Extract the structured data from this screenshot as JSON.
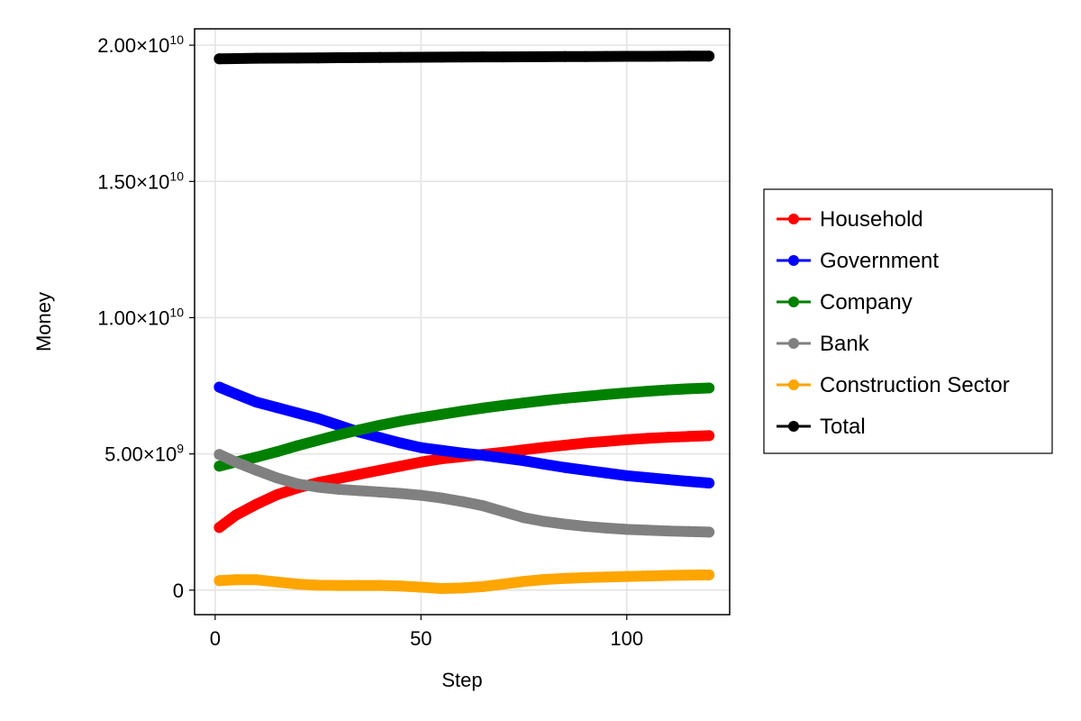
{
  "chart_data": {
    "type": "scatter",
    "xlabel": "Step",
    "ylabel": "Money",
    "xlim": [
      -5,
      125
    ],
    "ylim": [
      -900000000,
      20600000000
    ],
    "grid": true,
    "legend_position": "right",
    "x_ticks": [
      {
        "value": 0,
        "label": "0"
      },
      {
        "value": 50,
        "label": "50"
      },
      {
        "value": 100,
        "label": "100"
      }
    ],
    "y_ticks": [
      {
        "value": 0,
        "label": "0",
        "mantissa": "0",
        "exponent": ""
      },
      {
        "value": 5000000000,
        "label": "5.00×10^9",
        "mantissa": "5.00×10",
        "exponent": "9"
      },
      {
        "value": 10000000000,
        "label": "1.00×10^10",
        "mantissa": "1.00×10",
        "exponent": "10"
      },
      {
        "value": 15000000000,
        "label": "1.50×10^10",
        "mantissa": "1.50×10",
        "exponent": "10"
      },
      {
        "value": 20000000000,
        "label": "2.00×10^10",
        "mantissa": "2.00×10",
        "exponent": "10"
      }
    ],
    "series": [
      {
        "name": "Household",
        "color": "#ff0000",
        "x": [
          1,
          5,
          10,
          15,
          20,
          25,
          30,
          35,
          40,
          45,
          50,
          55,
          60,
          65,
          70,
          75,
          80,
          85,
          90,
          95,
          100,
          105,
          110,
          115,
          120
        ],
        "y": [
          2300000000,
          2750000000,
          3150000000,
          3500000000,
          3750000000,
          3950000000,
          4100000000,
          4250000000,
          4400000000,
          4550000000,
          4700000000,
          4820000000,
          4900000000,
          4980000000,
          5060000000,
          5150000000,
          5240000000,
          5320000000,
          5400000000,
          5460000000,
          5520000000,
          5570000000,
          5610000000,
          5640000000,
          5670000000
        ]
      },
      {
        "name": "Government",
        "color": "#0000ff",
        "x": [
          1,
          5,
          10,
          15,
          20,
          25,
          30,
          35,
          40,
          45,
          50,
          55,
          60,
          65,
          70,
          75,
          80,
          85,
          90,
          95,
          100,
          105,
          110,
          115,
          120
        ],
        "y": [
          7450000000,
          7200000000,
          6900000000,
          6700000000,
          6500000000,
          6300000000,
          6050000000,
          5800000000,
          5600000000,
          5400000000,
          5230000000,
          5130000000,
          5030000000,
          4950000000,
          4850000000,
          4750000000,
          4620000000,
          4500000000,
          4400000000,
          4300000000,
          4200000000,
          4130000000,
          4060000000,
          3990000000,
          3930000000
        ]
      },
      {
        "name": "Company",
        "color": "#008000",
        "x": [
          1,
          5,
          10,
          15,
          20,
          25,
          30,
          35,
          40,
          45,
          50,
          55,
          60,
          65,
          70,
          75,
          80,
          85,
          90,
          95,
          100,
          105,
          110,
          115,
          120
        ],
        "y": [
          4550000000,
          4700000000,
          4880000000,
          5080000000,
          5300000000,
          5500000000,
          5700000000,
          5880000000,
          6050000000,
          6200000000,
          6330000000,
          6450000000,
          6570000000,
          6680000000,
          6780000000,
          6870000000,
          6960000000,
          7040000000,
          7110000000,
          7180000000,
          7240000000,
          7300000000,
          7350000000,
          7390000000,
          7420000000
        ]
      },
      {
        "name": "Bank",
        "color": "#808080",
        "x": [
          1,
          5,
          10,
          15,
          20,
          25,
          30,
          35,
          40,
          45,
          50,
          55,
          60,
          65,
          70,
          75,
          80,
          85,
          90,
          95,
          100,
          105,
          110,
          115,
          120
        ],
        "y": [
          4980000000,
          4700000000,
          4400000000,
          4120000000,
          3900000000,
          3780000000,
          3700000000,
          3650000000,
          3600000000,
          3550000000,
          3480000000,
          3380000000,
          3250000000,
          3100000000,
          2880000000,
          2660000000,
          2520000000,
          2420000000,
          2340000000,
          2280000000,
          2230000000,
          2200000000,
          2170000000,
          2150000000,
          2130000000
        ]
      },
      {
        "name": "Construction Sector",
        "color": "#ffa500",
        "x": [
          1,
          5,
          10,
          15,
          20,
          25,
          30,
          35,
          40,
          45,
          50,
          55,
          60,
          65,
          70,
          75,
          80,
          85,
          90,
          95,
          100,
          105,
          110,
          115,
          120
        ],
        "y": [
          350000000,
          380000000,
          380000000,
          300000000,
          220000000,
          180000000,
          170000000,
          170000000,
          170000000,
          150000000,
          110000000,
          60000000,
          80000000,
          130000000,
          220000000,
          320000000,
          390000000,
          430000000,
          460000000,
          480000000,
          500000000,
          520000000,
          540000000,
          550000000,
          560000000
        ]
      },
      {
        "name": "Total",
        "color": "#000000",
        "x": [
          1,
          5,
          10,
          15,
          20,
          25,
          30,
          35,
          40,
          45,
          50,
          55,
          60,
          65,
          70,
          75,
          80,
          85,
          90,
          95,
          100,
          105,
          110,
          115,
          120
        ],
        "y": [
          19500000000,
          19510000000,
          19520000000,
          19525000000,
          19530000000,
          19535000000,
          19540000000,
          19545000000,
          19550000000,
          19555000000,
          19560000000,
          19563000000,
          19566000000,
          19569000000,
          19572000000,
          19575000000,
          19578000000,
          19581000000,
          19584000000,
          19587000000,
          19590000000,
          19593000000,
          19596000000,
          19598000000,
          19600000000
        ]
      }
    ]
  }
}
